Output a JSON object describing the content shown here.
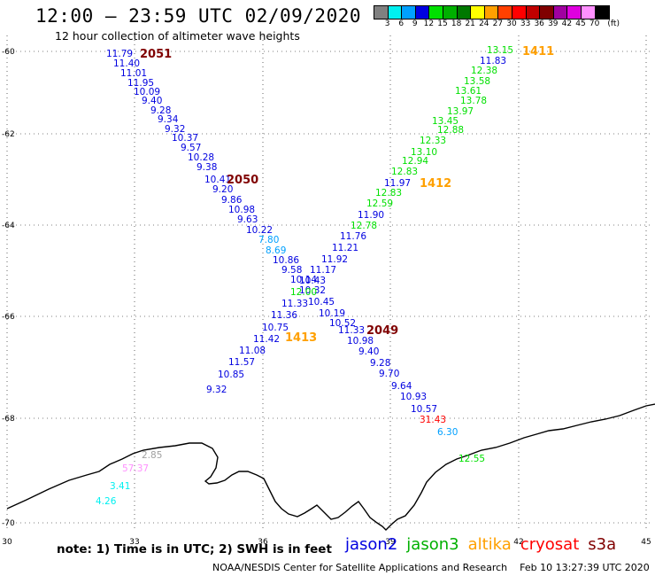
{
  "header": {
    "title": "12:00 – 23:59 UTC 02/09/2020",
    "subtitle": "12 hour collection of altimeter wave heights"
  },
  "legend": {
    "swatches": [
      "#808080",
      "#00f0f0",
      "#00a0ff",
      "#0000e0",
      "#00e000",
      "#00b000",
      "#007800",
      "#ffff00",
      "#ffa000",
      "#ff4000",
      "#ff0000",
      "#c00000",
      "#800000",
      "#a000a0",
      "#e000e0",
      "#ff90ff",
      "#000000"
    ],
    "labels": [
      "3",
      "6",
      "9",
      "12",
      "15",
      "18",
      "21",
      "24",
      "27",
      "30",
      "33",
      "36",
      "39",
      "42",
      "45",
      "70",
      "(ft)"
    ]
  },
  "axes": {
    "lon_ticks": [
      "30",
      "33",
      "36",
      "39",
      "42",
      "45"
    ],
    "lat_ticks": [
      "-60",
      "-62",
      "-64",
      "-66",
      "-68",
      "-70"
    ]
  },
  "tracks": [
    {
      "label": "2051",
      "color": "#800000"
    },
    {
      "label": "2050",
      "color": "#800000"
    },
    {
      "label": "2049",
      "color": "#800000"
    },
    {
      "label": "1411",
      "color": "#ffa000"
    },
    {
      "label": "1412",
      "color": "#ffa000"
    },
    {
      "label": "1413",
      "color": "#ffa000"
    }
  ],
  "observations": {
    "track_a": [
      "11.79",
      "11.40",
      "11.01",
      "11.95",
      "10.09",
      "9.40",
      "9.28",
      "9.34",
      "9.32",
      "10.37",
      "9.57",
      "10.28",
      "9.38",
      "10.41",
      "9.20",
      "9.86",
      "10.98",
      "9.63",
      "10.22",
      "7.80",
      "8.69",
      "10.86",
      "9.58",
      "10.14",
      "10.32",
      "10.45",
      "10.19",
      "10.52",
      "11.33",
      "10.98",
      "9.40",
      "9.28",
      "9.70",
      "9.64",
      "10.93",
      "10.57",
      "31.43",
      "6.30"
    ],
    "track_b": [
      "11.83",
      "11.97",
      "11.90",
      "11.76",
      "11.21",
      "11.92",
      "11.17",
      "10.43",
      "11.33",
      "11.36",
      "10.75",
      "11.42",
      "11.08",
      "11.57",
      "10.85",
      "9.32"
    ],
    "track_c": [
      "13.15",
      "12.38",
      "13.58",
      "13.61",
      "13.78",
      "13.97",
      "13.45",
      "12.88",
      "12.33",
      "13.10",
      "12.94",
      "12.83",
      "12.83",
      "12.59",
      "12.78",
      "12.00"
    ],
    "coast": [
      "2.85",
      "57.37",
      "3.41",
      "4.26",
      "12.55"
    ]
  },
  "footer": {
    "note": "note: 1) Time is in UTC; 2) SWH is in feet",
    "satellites": [
      {
        "name": "jason2",
        "color": "#0000e0"
      },
      {
        "name": "jason3",
        "color": "#00b000"
      },
      {
        "name": "altika",
        "color": "#ffa000"
      },
      {
        "name": "cryosat",
        "color": "#ff0000"
      },
      {
        "name": "s3a",
        "color": "#800000"
      }
    ],
    "credit": "NOAA/NESDIS Center for Satellite Applications and Research",
    "timestamp": "Feb 10 13:27:39 UTC 2020"
  }
}
